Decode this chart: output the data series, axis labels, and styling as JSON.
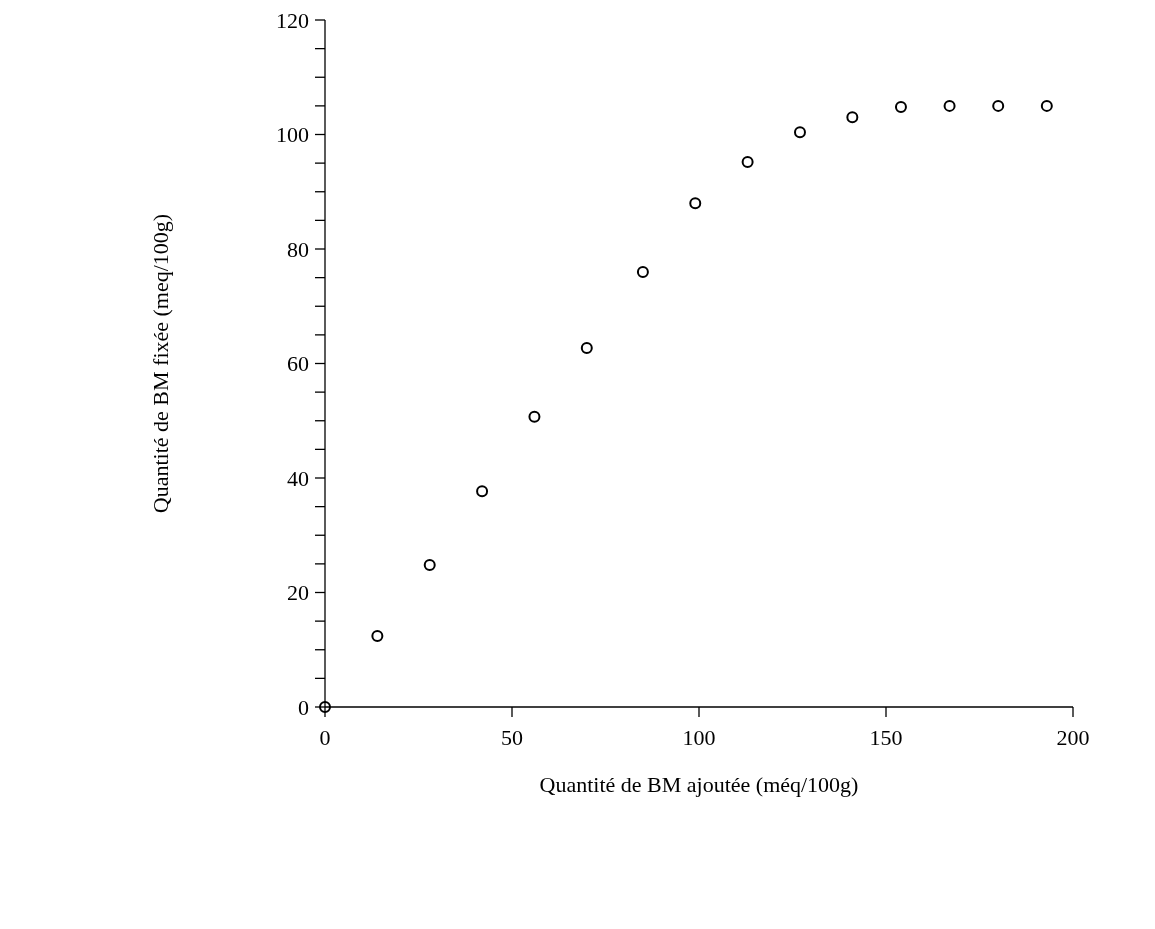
{
  "chart_data": {
    "type": "scatter",
    "xlabel": "Quantité de BM ajoutée (méq/100g)",
    "ylabel": "Quantité de BM fixée (meq/100g)",
    "x": [
      0,
      14,
      28,
      42,
      56,
      70,
      85,
      99,
      113,
      127,
      141,
      154,
      167,
      180,
      193
    ],
    "series": [
      {
        "color": "#000000",
        "values": [
          0,
          12.4,
          24.8,
          37.7,
          50.7,
          62.7,
          76,
          88,
          95.2,
          100.4,
          103,
          104.8,
          105,
          105,
          105
        ]
      }
    ],
    "xlim": [
      0,
      200
    ],
    "xticks": [
      0,
      50,
      100,
      150,
      200
    ],
    "ylim": [
      0,
      120
    ],
    "yticks": [
      0,
      {
        "value": 5,
        "label": null
      },
      {
        "value": 10,
        "label": null
      },
      {
        "value": 15,
        "label": null
      },
      20,
      {
        "value": 25,
        "label": null
      },
      {
        "value": 30,
        "label": null
      },
      {
        "value": 35,
        "label": null
      },
      40,
      {
        "value": 45,
        "label": null
      },
      {
        "value": 50,
        "label": null
      },
      {
        "value": 55,
        "label": null
      },
      60,
      {
        "value": 65,
        "label": null
      },
      {
        "value": 70,
        "label": null
      },
      {
        "value": 75,
        "label": null
      },
      80,
      {
        "value": 85,
        "label": null
      },
      {
        "value": 90,
        "label": null
      },
      {
        "value": 95,
        "label": null
      },
      100,
      {
        "value": 105,
        "label": null
      },
      {
        "value": 110,
        "label": null
      },
      {
        "value": 115,
        "label": null
      },
      120
    ],
    "marker": "circle",
    "grid": false
  }
}
